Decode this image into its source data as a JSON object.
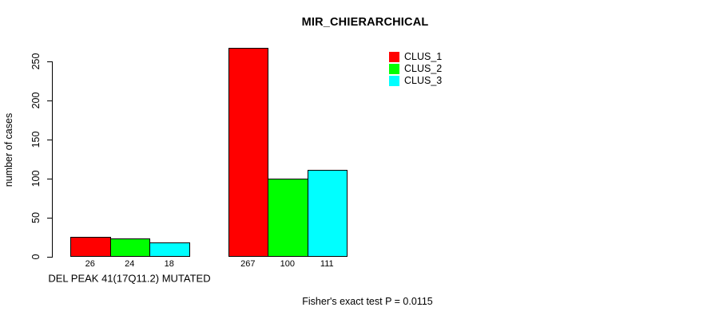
{
  "chart_data": {
    "type": "bar",
    "title": "MIR_CHIERARCHICAL",
    "ylabel": "number of cases",
    "xlabel": "",
    "categories": [
      "DEL PEAK 41(17Q11.2) MUTATED",
      ""
    ],
    "series": [
      {
        "name": "CLUS_1",
        "color": "#ff0000",
        "values": [
          26,
          267
        ]
      },
      {
        "name": "CLUS_2",
        "color": "#00ff00",
        "values": [
          24,
          100
        ]
      },
      {
        "name": "CLUS_3",
        "color": "#00ffff",
        "values": [
          18,
          111
        ]
      }
    ],
    "yticks": [
      0,
      50,
      100,
      150,
      200,
      250
    ],
    "ylim": [
      0,
      275
    ],
    "grid": false,
    "legend_position": "top-right",
    "bar_value_labels_shown": true,
    "annotation": "Fisher's exact test P = 0.0115"
  },
  "colors": {
    "axis": "#000000",
    "background": "#ffffff",
    "text": "#000000"
  }
}
